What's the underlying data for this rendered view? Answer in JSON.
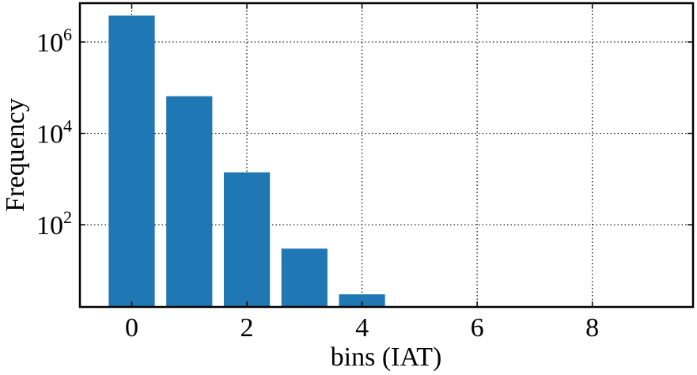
{
  "chart_data": {
    "type": "bar",
    "title": "",
    "xlabel": "bins (IAT)",
    "ylabel": "Frequency",
    "x": [
      0,
      1,
      2,
      3,
      4
    ],
    "values": [
      3800000,
      65000,
      1400,
      30,
      3
    ],
    "bar_color": "#1f77b4",
    "xlim": [
      -0.9,
      9.75
    ],
    "ylim_log10": [
      0.2,
      6.85
    ],
    "y_scale": "log",
    "x_ticks": [
      0,
      2,
      4,
      6,
      8
    ],
    "y_ticks": [
      {
        "base": "10",
        "exp": "6",
        "value": 1000000
      },
      {
        "base": "10",
        "exp": "4",
        "value": 10000
      },
      {
        "base": "10",
        "exp": "2",
        "value": 100
      }
    ],
    "grid": true,
    "grid_style": "dotted"
  }
}
